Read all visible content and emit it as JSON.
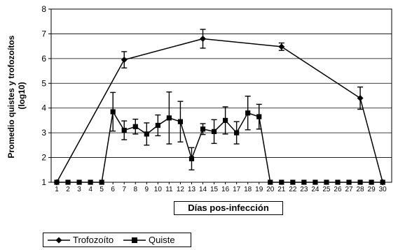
{
  "chart_data": {
    "type": "line",
    "title": "",
    "xlabel": "Días pos-infección",
    "ylabel_line1": "Promedio quistes y trofozoítos",
    "ylabel_line2": "(log10)",
    "ylim": [
      1,
      8
    ],
    "yticks": [
      1,
      2,
      3,
      4,
      5,
      6,
      7,
      8
    ],
    "grid": "horizontal",
    "legend_placement": "bottom-left",
    "categories": [
      "1",
      "2",
      "3",
      "4",
      "5",
      "6",
      "7",
      "8",
      "9",
      "10",
      "11",
      "12",
      "13",
      "14",
      "15",
      "16",
      "17",
      "18",
      "19",
      "20",
      "21",
      "22",
      "23",
      "24",
      "25",
      "26",
      "27",
      "28",
      "29",
      "30"
    ],
    "series": [
      {
        "name": "Trofozoíto",
        "marker": "diamond",
        "x": [
          1,
          7,
          14,
          21,
          28,
          30
        ],
        "values": [
          1.0,
          5.95,
          6.8,
          6.48,
          4.4,
          1.0
        ],
        "error": [
          0,
          0.33,
          0.38,
          0.15,
          0.45,
          0
        ]
      },
      {
        "name": "Quiste",
        "marker": "square",
        "x": [
          1,
          2,
          3,
          4,
          5,
          6,
          7,
          8,
          9,
          10,
          11,
          12,
          13,
          14,
          15,
          16,
          17,
          18,
          19,
          20,
          21,
          22,
          23,
          24,
          25,
          26,
          27,
          28,
          29,
          30
        ],
        "values": [
          1.0,
          1.0,
          1.0,
          1.0,
          1.0,
          3.85,
          3.1,
          3.25,
          2.95,
          3.3,
          3.6,
          3.45,
          1.95,
          3.15,
          3.05,
          3.5,
          3.0,
          3.8,
          3.65,
          1.0,
          1.0,
          1.0,
          1.0,
          1.0,
          1.0,
          1.0,
          1.0,
          1.0,
          1.0,
          1.0
        ],
        "error": [
          0,
          0,
          0,
          0,
          0,
          0.78,
          0.38,
          0.3,
          0.45,
          0.42,
          1.05,
          0.82,
          0.45,
          0.22,
          0.48,
          0.55,
          0.45,
          0.68,
          0.5,
          0,
          0,
          0,
          0,
          0,
          0,
          0,
          0,
          0,
          0,
          0
        ]
      }
    ]
  }
}
